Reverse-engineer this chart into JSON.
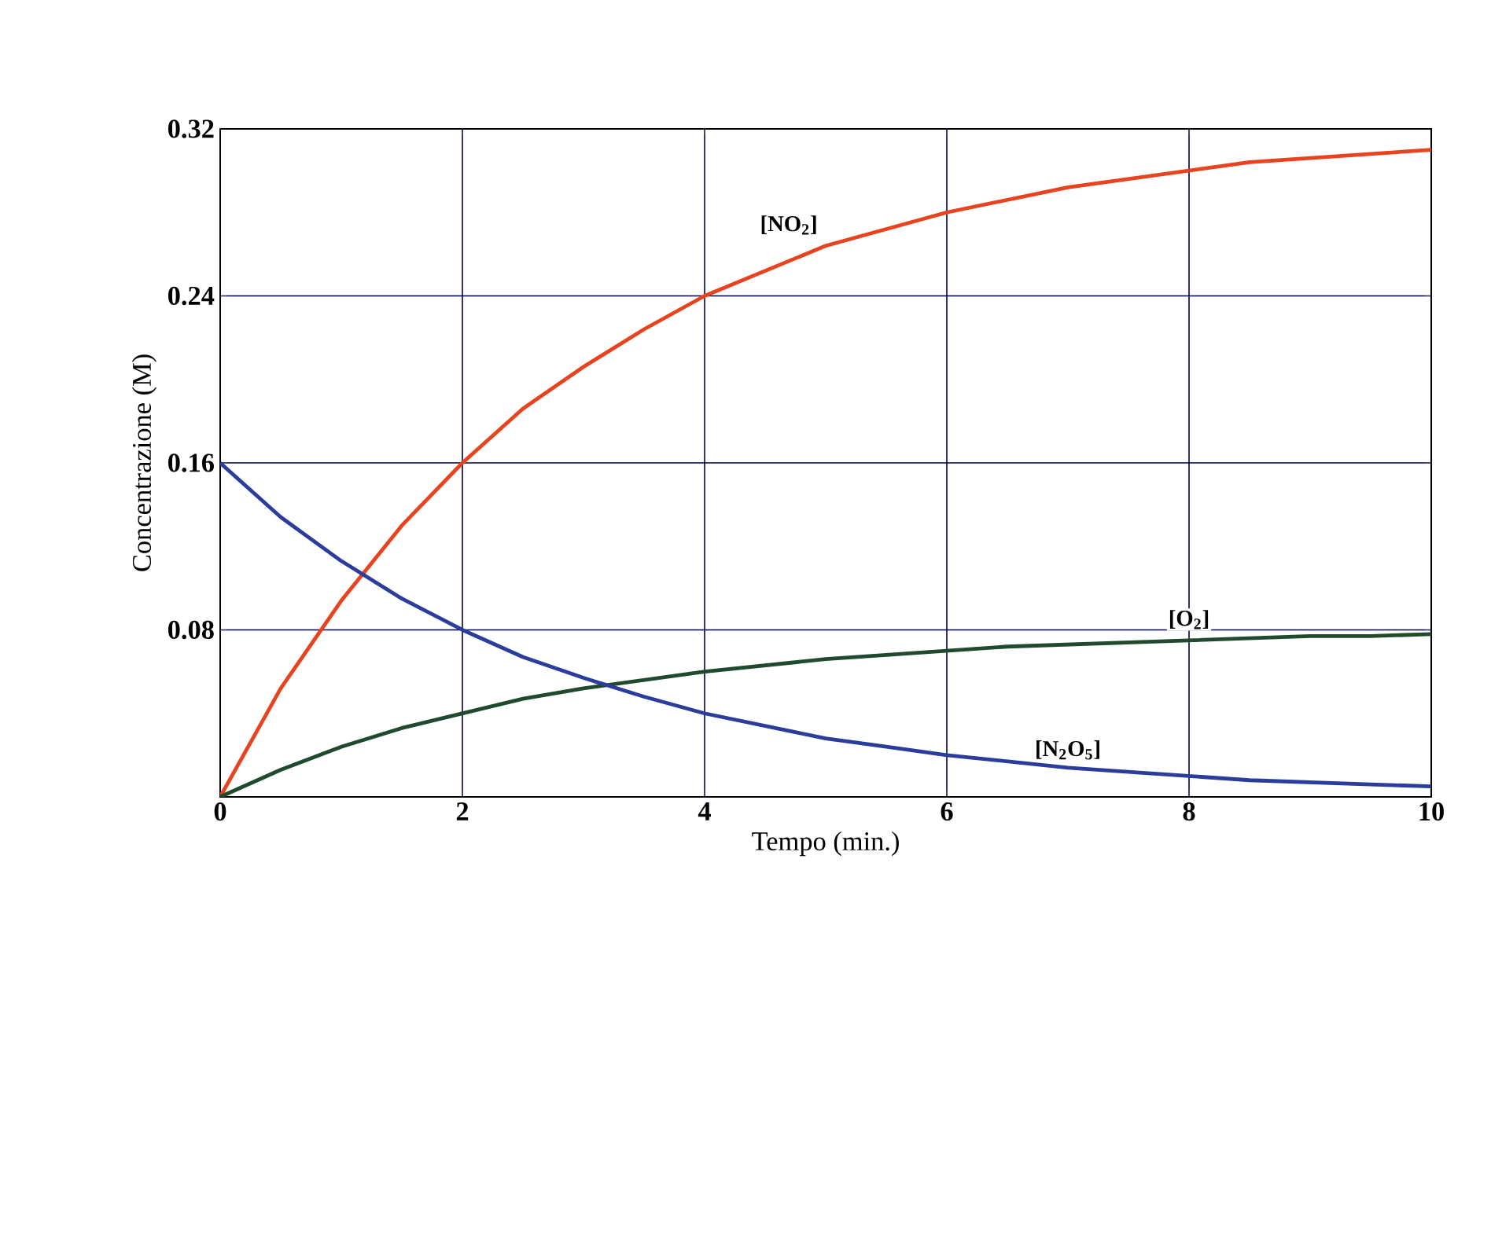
{
  "chart_data": {
    "type": "line",
    "xlabel": "Tempo (min.)",
    "ylabel": "Concentrazione (M)",
    "x": [
      0,
      0.5,
      1,
      1.5,
      2,
      2.5,
      3,
      3.5,
      4,
      4.5,
      5,
      5.5,
      6,
      6.5,
      7,
      7.5,
      8,
      8.5,
      9,
      9.5,
      10
    ],
    "series": [
      {
        "name": "[NO$_{2}$]",
        "color": "#e8431e",
        "values": [
          0,
          0.052,
          0.094,
          0.13,
          0.16,
          0.186,
          0.206,
          0.224,
          0.24,
          0.252,
          0.264,
          0.272,
          0.28,
          0.286,
          0.292,
          0.296,
          0.3,
          0.304,
          0.306,
          0.308,
          0.31
        ]
      },
      {
        "name": "[O$_{2}$]",
        "color": "#1f4a2e",
        "values": [
          0,
          0.013,
          0.024,
          0.033,
          0.04,
          0.047,
          0.052,
          0.056,
          0.06,
          0.063,
          0.066,
          0.068,
          0.07,
          0.072,
          0.073,
          0.074,
          0.075,
          0.076,
          0.077,
          0.077,
          0.078
        ]
      },
      {
        "name": "[N$_{2}$O$_{5}$]",
        "color": "#2b3d9c",
        "values": [
          0.16,
          0.134,
          0.113,
          0.095,
          0.08,
          0.067,
          0.057,
          0.048,
          0.04,
          0.034,
          0.028,
          0.024,
          0.02,
          0.017,
          0.014,
          0.012,
          0.01,
          0.008,
          0.007,
          0.006,
          0.005
        ]
      }
    ],
    "xlim": [
      0,
      10
    ],
    "ylim": [
      0,
      0.32
    ],
    "xticks": [
      0,
      2,
      4,
      6,
      8,
      10
    ],
    "yticks": [
      {
        "value": 0,
        "label": null
      },
      0.08,
      0.16,
      0.24,
      0.32
    ],
    "grid": true
  }
}
